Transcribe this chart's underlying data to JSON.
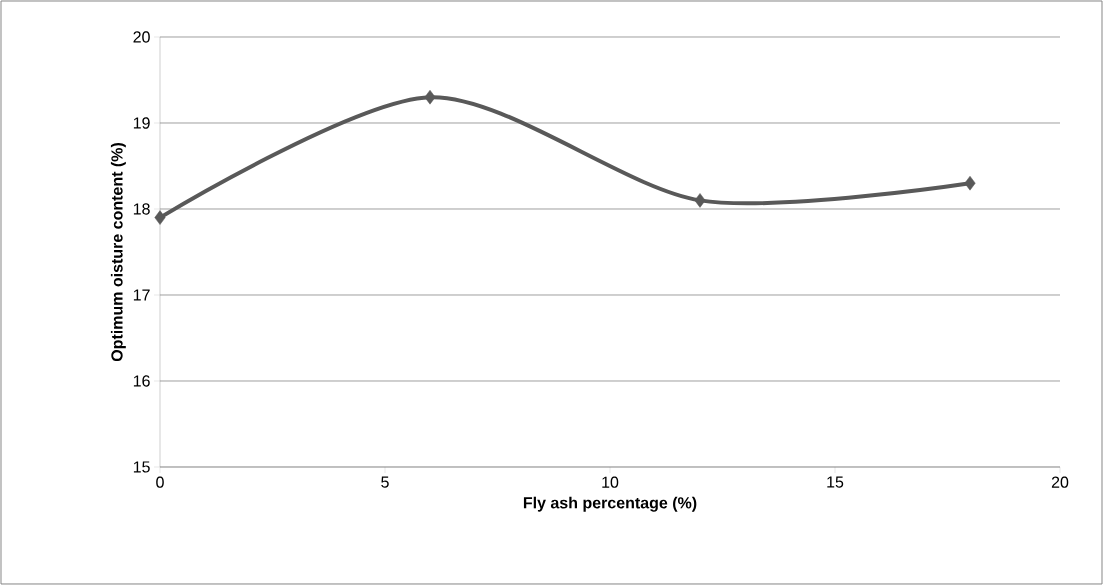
{
  "chart_data": {
    "type": "line",
    "xlabel": "Fly ash percentage (%)",
    "ylabel": "Optimum oisture content (%)",
    "x": [
      0,
      6,
      12,
      18
    ],
    "series": [
      {
        "color": "#595959",
        "values": [
          17.9,
          19.3,
          18.1,
          18.3
        ]
      }
    ],
    "xlim": [
      0,
      20
    ],
    "ylim": [
      15,
      20
    ],
    "xticks": [
      0,
      5,
      10,
      15,
      20
    ],
    "yticks": [
      15,
      16,
      17,
      18,
      19,
      20
    ],
    "grid": "y",
    "marker": "diamond",
    "line_style": "solid"
  }
}
